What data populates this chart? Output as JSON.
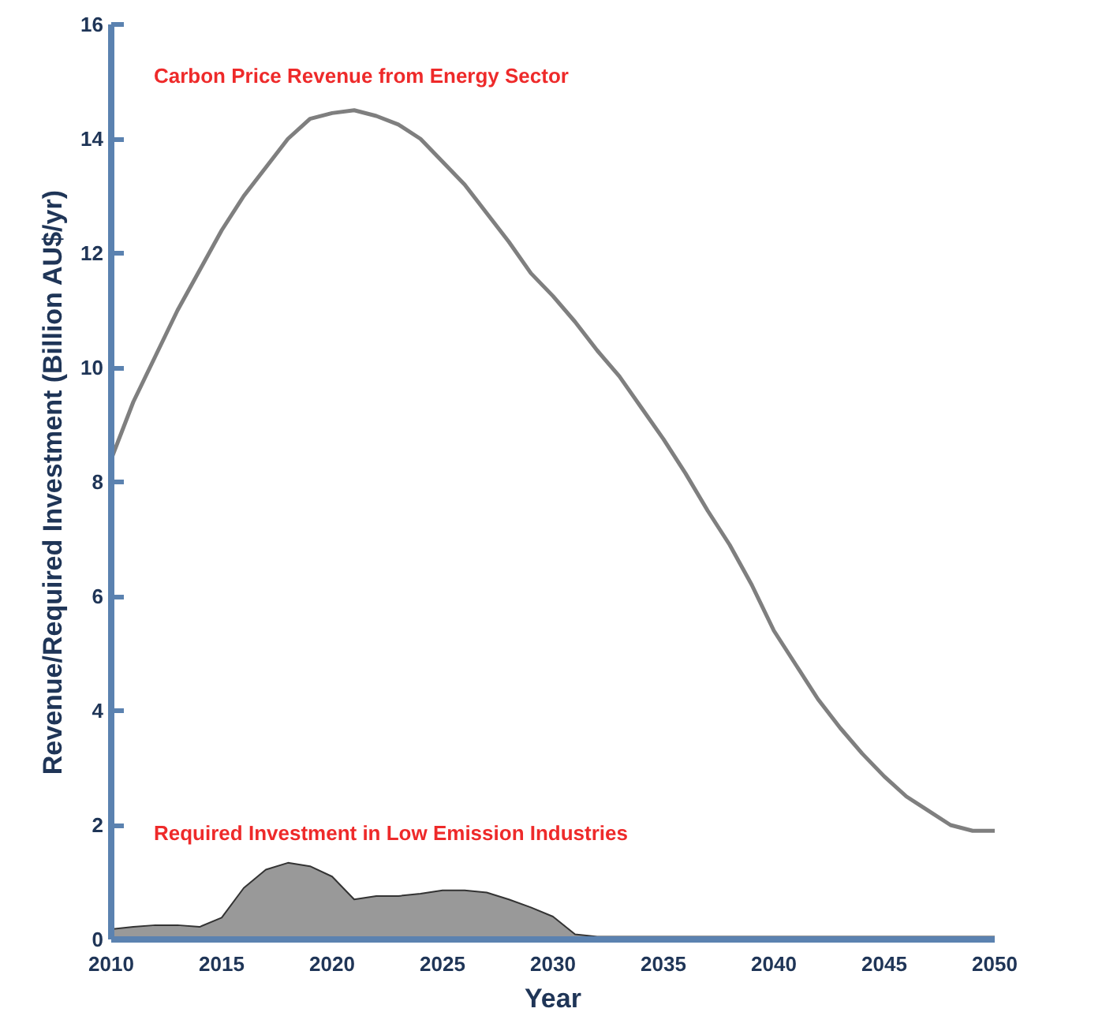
{
  "chart_data": {
    "type": "line",
    "xlabel": "Year",
    "ylabel": "Revenue/Required Investment (Billion AU$/yr)",
    "xlim": [
      2010,
      2050
    ],
    "ylim": [
      0,
      16
    ],
    "xticks": [
      2010,
      2015,
      2020,
      2025,
      2030,
      2035,
      2040,
      2045,
      2050
    ],
    "yticks": [
      0,
      2,
      4,
      6,
      8,
      10,
      12,
      14,
      16
    ],
    "grid": false,
    "annotations": [
      "Carbon Price Revenue from Energy Sector",
      "Required Investment in Low Emission Industries"
    ],
    "series": [
      {
        "color": "#7f7f7f",
        "x": [
          2010,
          2011,
          2012,
          2013,
          2014,
          2015,
          2016,
          2017,
          2018,
          2019,
          2020,
          2021,
          2022,
          2023,
          2024,
          2025,
          2026,
          2027,
          2028,
          2029,
          2030,
          2031,
          2032,
          2033,
          2034,
          2035,
          2036,
          2037,
          2038,
          2039,
          2040,
          2041,
          2042,
          2043,
          2044,
          2045,
          2046,
          2047,
          2048,
          2049,
          2050
        ],
        "values": [
          8.4,
          9.4,
          10.2,
          11,
          11.7,
          12.4,
          13,
          13.5,
          14,
          14.35,
          14.45,
          14.5,
          14.4,
          14.25,
          14,
          13.6,
          13.2,
          12.7,
          12.2,
          11.65,
          11.25,
          10.8,
          10.3,
          9.85,
          9.3,
          8.75,
          8.15,
          7.5,
          6.9,
          6.2,
          5.4,
          4.8,
          4.2,
          3.7,
          3.25,
          2.85,
          2.5,
          2.25,
          2,
          1.9,
          1.9
        ]
      },
      {
        "type": "area",
        "color": "#999999",
        "x": [
          2010,
          2011,
          2012,
          2013,
          2014,
          2015,
          2016,
          2017,
          2018,
          2019,
          2020,
          2021,
          2022,
          2023,
          2024,
          2025,
          2026,
          2027,
          2028,
          2029,
          2030,
          2031,
          2032,
          2035,
          2040,
          2045,
          2050
        ],
        "values": [
          0.18,
          0.22,
          0.25,
          0.25,
          0.22,
          0.38,
          0.9,
          1.22,
          1.34,
          1.28,
          1.1,
          0.7,
          0.76,
          0.76,
          0.8,
          0.86,
          0.86,
          0.82,
          0.7,
          0.56,
          0.4,
          0.09,
          0.05,
          0.05,
          0.05,
          0.05,
          0.05
        ]
      }
    ]
  }
}
